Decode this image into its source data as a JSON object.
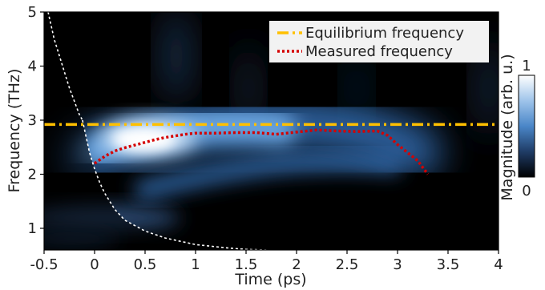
{
  "chart_data": {
    "type": "heatmap",
    "title": "",
    "xlabel": "Time (ps)",
    "ylabel": "Frequency (THz)",
    "xlim": [
      -0.5,
      4
    ],
    "ylim": [
      0.6,
      5
    ],
    "xticks": [
      -0.5,
      0,
      0.5,
      1,
      1.5,
      2,
      2.5,
      3,
      3.5,
      4
    ],
    "xtick_labels": [
      "-0.5",
      "0",
      "0.5",
      "1",
      "1.5",
      "2",
      "2.5",
      "3",
      "3.5",
      "4"
    ],
    "yticks": [
      1,
      2,
      3,
      4,
      5
    ],
    "ytick_labels": [
      "1",
      "2",
      "3",
      "4",
      "5"
    ],
    "grid": false,
    "colorbar": {
      "label": "Magnitude (arb. u.)",
      "range": [
        0,
        1
      ],
      "tick_labels": [
        "0",
        "1"
      ],
      "colors": [
        "#000000",
        "#1f3c66",
        "#4a86c8",
        "#9fc4ea",
        "#ffffff"
      ]
    },
    "legend": {
      "position": "top-right",
      "entries": [
        {
          "label": "Equilibrium frequency",
          "color": "#ffc000",
          "style": "dash-dot"
        },
        {
          "label": "Measured frequency",
          "color": "#d50000",
          "style": "dotted"
        }
      ]
    },
    "series": [
      {
        "name": "Equilibrium frequency",
        "x": [
          -0.5,
          4
        ],
        "y": [
          2.92,
          2.92
        ]
      },
      {
        "name": "Measured frequency",
        "x": [
          0,
          0.1,
          0.2,
          0.3,
          0.4,
          0.5,
          0.6,
          0.7,
          0.8,
          0.9,
          1.0,
          1.2,
          1.4,
          1.6,
          1.8,
          2.0,
          2.2,
          2.4,
          2.6,
          2.8,
          2.9,
          3.0,
          3.1,
          3.2,
          3.3
        ],
        "y": [
          2.2,
          2.33,
          2.43,
          2.49,
          2.54,
          2.59,
          2.64,
          2.68,
          2.71,
          2.74,
          2.76,
          2.76,
          2.77,
          2.77,
          2.74,
          2.78,
          2.82,
          2.8,
          2.79,
          2.8,
          2.72,
          2.55,
          2.4,
          2.25,
          2.0
        ]
      },
      {
        "name": "cutoff-curve",
        "x": [
          -0.12,
          -0.05,
          0.0,
          0.05,
          0.1,
          0.2,
          0.3,
          0.5,
          0.7,
          1.0,
          1.3,
          1.5,
          1.7
        ],
        "y": [
          3.0,
          2.4,
          2.1,
          1.85,
          1.65,
          1.35,
          1.15,
          0.95,
          0.82,
          0.7,
          0.64,
          0.61,
          0.6
        ]
      },
      {
        "name": "cutoff-curve-left",
        "x": [
          -0.46,
          -0.4,
          -0.35,
          -0.3,
          -0.25,
          -0.2,
          -0.15,
          -0.12
        ],
        "y": [
          5.0,
          4.5,
          4.2,
          3.9,
          3.6,
          3.35,
          3.1,
          3.0
        ]
      }
    ]
  }
}
